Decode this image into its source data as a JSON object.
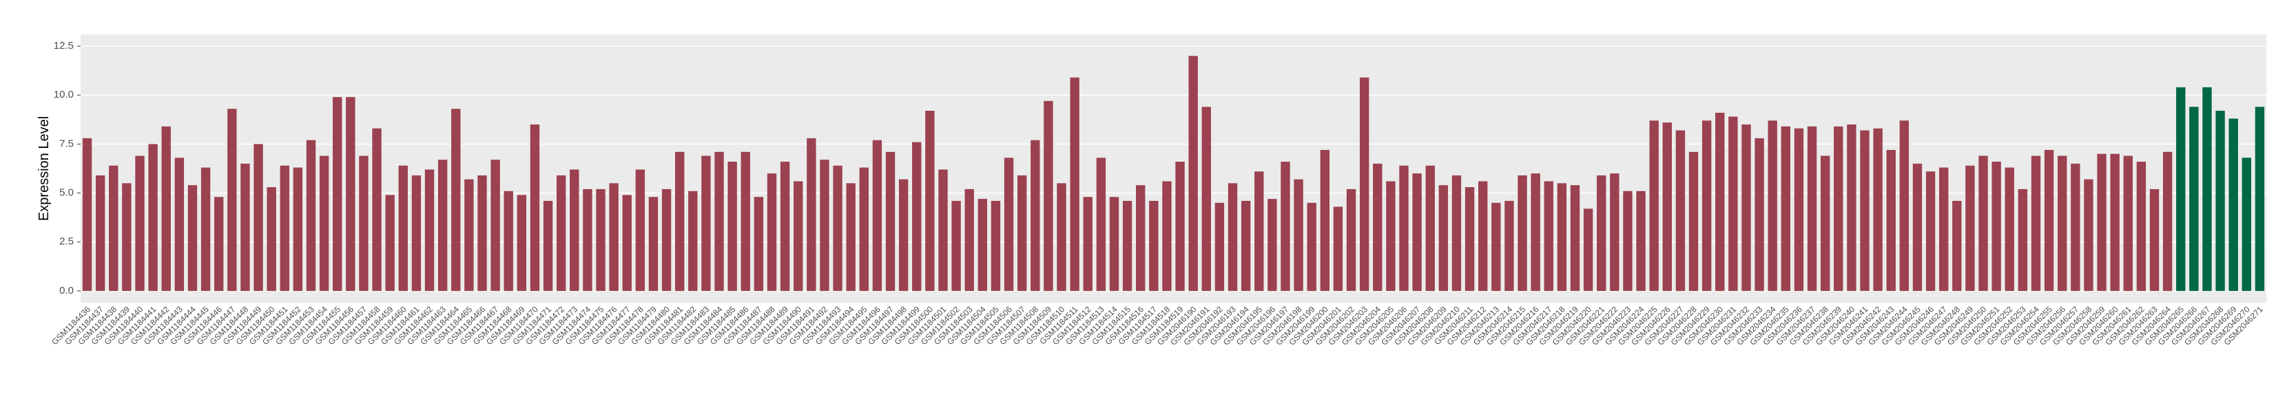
{
  "chart_data": {
    "type": "bar",
    "y_label": "Expression Level",
    "ylim": [
      -0.6,
      13.1
    ],
    "yticks": [
      {
        "value": 0,
        "label": "0.0"
      },
      {
        "value": 2.5,
        "label": "2.5"
      },
      {
        "value": 5,
        "label": "5.0"
      },
      {
        "value": 7.5,
        "label": "7.5"
      },
      {
        "value": 10,
        "label": "10.0"
      },
      {
        "value": 12.5,
        "label": "12.5"
      }
    ],
    "grid": true,
    "categories": [
      "GSM1184436",
      "GSM1184437",
      "GSM1184438",
      "GSM1184439",
      "GSM1184440",
      "GSM1184441",
      "GSM1184442",
      "GSM1184443",
      "GSM1184444",
      "GSM1184445",
      "GSM1184446",
      "GSM1184447",
      "GSM1184448",
      "GSM1184449",
      "GSM1184450",
      "GSM1184451",
      "GSM1184452",
      "GSM1184453",
      "GSM1184454",
      "GSM1184455",
      "GSM1184456",
      "GSM1184457",
      "GSM1184458",
      "GSM1184459",
      "GSM1184460",
      "GSM1184461",
      "GSM1184462",
      "GSM1184463",
      "GSM1184464",
      "GSM1184465",
      "GSM1184466",
      "GSM1184467",
      "GSM1184468",
      "GSM1184469",
      "GSM1184470",
      "GSM1184471",
      "GSM1184472",
      "GSM1184473",
      "GSM1184474",
      "GSM1184475",
      "GSM1184476",
      "GSM1184477",
      "GSM1184478",
      "GSM1184479",
      "GSM1184480",
      "GSM1184481",
      "GSM1184482",
      "GSM1184483",
      "GSM1184484",
      "GSM1184485",
      "GSM1184486",
      "GSM1184487",
      "GSM1184488",
      "GSM1184489",
      "GSM1184490",
      "GSM1184491",
      "GSM1184492",
      "GSM1184493",
      "GSM1184494",
      "GSM1184495",
      "GSM1184496",
      "GSM1184497",
      "GSM1184498",
      "GSM1184499",
      "GSM1184500",
      "GSM1184501",
      "GSM1184502",
      "GSM1184503",
      "GSM1184504",
      "GSM1184505",
      "GSM1184506",
      "GSM1184507",
      "GSM1184508",
      "GSM1184509",
      "GSM1184510",
      "GSM1184511",
      "GSM1184512",
      "GSM1184513",
      "GSM1184514",
      "GSM1184515",
      "GSM1184516",
      "GSM1184517",
      "GSM1184518",
      "GSM1184519",
      "GSM2046190",
      "GSM2046191",
      "GSM2046192",
      "GSM2046193",
      "GSM2046194",
      "GSM2046195",
      "GSM2046196",
      "GSM2046197",
      "GSM2046198",
      "GSM2046199",
      "GSM2046200",
      "GSM2046201",
      "GSM2046202",
      "GSM2046203",
      "GSM2046204",
      "GSM2046205",
      "GSM2046206",
      "GSM2046207",
      "GSM2046208",
      "GSM2046209",
      "GSM2046210",
      "GSM2046211",
      "GSM2046212",
      "GSM2046213",
      "GSM2046214",
      "GSM2046215",
      "GSM2046216",
      "GSM2046217",
      "GSM2046218",
      "GSM2046219",
      "GSM2046220",
      "GSM2046221",
      "GSM2046222",
      "GSM2046223",
      "GSM2046224",
      "GSM2046225",
      "GSM2046226",
      "GSM2046227",
      "GSM2046228",
      "GSM2046229",
      "GSM2046230",
      "GSM2046231",
      "GSM2046232",
      "GSM2046233",
      "GSM2046234",
      "GSM2046235",
      "GSM2046236",
      "GSM2046237",
      "GSM2046238",
      "GSM2046239",
      "GSM2046240",
      "GSM2046241",
      "GSM2046242",
      "GSM2046243",
      "GSM2046244",
      "GSM2046245",
      "GSM2046246",
      "GSM2046247",
      "GSM2046248",
      "GSM2046249",
      "GSM2046250",
      "GSM2046251",
      "GSM2046252",
      "GSM2046253",
      "GSM2046254",
      "GSM2046255",
      "GSM2046256",
      "GSM2046257",
      "GSM2046258",
      "GSM2046259",
      "GSM2046260",
      "GSM2046261",
      "GSM2046262",
      "GSM2046263",
      "GSM2046264",
      "GSM2046265",
      "GSM2046266",
      "GSM2046267",
      "GSM2046268",
      "GSM2046269",
      "GSM2046270",
      "GSM2046271"
    ],
    "values": [
      7.8,
      5.9,
      6.4,
      5.5,
      6.9,
      7.5,
      8.4,
      6.8,
      5.4,
      6.3,
      4.8,
      9.3,
      6.5,
      7.5,
      5.3,
      6.4,
      6.3,
      7.7,
      6.9,
      9.9,
      9.9,
      6.9,
      8.3,
      4.9,
      6.4,
      5.9,
      6.2,
      6.7,
      9.3,
      5.7,
      5.9,
      6.7,
      5.1,
      4.9,
      8.5,
      4.6,
      5.9,
      6.2,
      5.2,
      5.2,
      5.5,
      4.9,
      6.2,
      4.8,
      5.2,
      7.1,
      5.1,
      6.9,
      7.1,
      6.6,
      7.1,
      4.8,
      6.0,
      6.6,
      5.6,
      7.8,
      6.7,
      6.4,
      5.5,
      6.3,
      7.7,
      7.1,
      5.7,
      7.6,
      9.2,
      6.2,
      4.6,
      5.2,
      4.7,
      4.6,
      6.8,
      5.9,
      7.7,
      9.7,
      5.5,
      10.9,
      4.8,
      6.8,
      4.8,
      4.6,
      5.4,
      4.6,
      5.6,
      6.6,
      12.0,
      9.4,
      4.5,
      5.5,
      4.6,
      6.1,
      4.7,
      6.6,
      5.7,
      4.5,
      7.2,
      4.3,
      5.2,
      10.9,
      6.5,
      5.6,
      6.4,
      6.0,
      6.4,
      5.4,
      5.9,
      5.3,
      5.6,
      4.5,
      4.6,
      5.9,
      6.0,
      5.6,
      5.5,
      5.4,
      4.2,
      5.9,
      6.0,
      5.1,
      5.1,
      8.7,
      8.6,
      8.2,
      7.1,
      8.7,
      9.1,
      8.9,
      8.5,
      7.8,
      8.7,
      8.4,
      8.3,
      8.4,
      6.9,
      8.4,
      8.5,
      8.2,
      8.3,
      7.2,
      8.7,
      6.5,
      6.1,
      6.3,
      4.6,
      6.4,
      6.9,
      6.6,
      6.3,
      5.2,
      6.9,
      7.2,
      6.9,
      6.5,
      5.7,
      7.0,
      7.0,
      6.9,
      6.6,
      5.2,
      7.1,
      10.4,
      9.4,
      10.4,
      9.2,
      8.8,
      6.8,
      9.4
    ],
    "colors": [
      "#9b4150",
      "#9b4150",
      "#9b4150",
      "#9b4150",
      "#9b4150",
      "#9b4150",
      "#9b4150",
      "#9b4150",
      "#9b4150",
      "#9b4150",
      "#9b4150",
      "#9b4150",
      "#9b4150",
      "#9b4150",
      "#9b4150",
      "#9b4150",
      "#9b4150",
      "#9b4150",
      "#9b4150",
      "#9b4150",
      "#9b4150",
      "#9b4150",
      "#9b4150",
      "#9b4150",
      "#9b4150",
      "#9b4150",
      "#9b4150",
      "#9b4150",
      "#9b4150",
      "#9b4150",
      "#9b4150",
      "#9b4150",
      "#9b4150",
      "#9b4150",
      "#9b4150",
      "#9b4150",
      "#9b4150",
      "#9b4150",
      "#9b4150",
      "#9b4150",
      "#9b4150",
      "#9b4150",
      "#9b4150",
      "#9b4150",
      "#9b4150",
      "#9b4150",
      "#9b4150",
      "#9b4150",
      "#9b4150",
      "#9b4150",
      "#9b4150",
      "#9b4150",
      "#9b4150",
      "#9b4150",
      "#9b4150",
      "#9b4150",
      "#9b4150",
      "#9b4150",
      "#9b4150",
      "#9b4150",
      "#9b4150",
      "#9b4150",
      "#9b4150",
      "#9b4150",
      "#9b4150",
      "#9b4150",
      "#9b4150",
      "#9b4150",
      "#9b4150",
      "#9b4150",
      "#9b4150",
      "#9b4150",
      "#9b4150",
      "#9b4150",
      "#9b4150",
      "#9b4150",
      "#9b4150",
      "#9b4150",
      "#9b4150",
      "#9b4150",
      "#9b4150",
      "#9b4150",
      "#9b4150",
      "#9b4150",
      "#9b4150",
      "#9b4150",
      "#9b4150",
      "#9b4150",
      "#9b4150",
      "#9b4150",
      "#9b4150",
      "#9b4150",
      "#9b4150",
      "#9b4150",
      "#9b4150",
      "#9b4150",
      "#9b4150",
      "#9b4150",
      "#9b4150",
      "#9b4150",
      "#9b4150",
      "#9b4150",
      "#9b4150",
      "#9b4150",
      "#9b4150",
      "#9b4150",
      "#9b4150",
      "#9b4150",
      "#9b4150",
      "#9b4150",
      "#9b4150",
      "#9b4150",
      "#9b4150",
      "#9b4150",
      "#9b4150",
      "#9b4150",
      "#9b4150",
      "#9b4150",
      "#9b4150",
      "#9b4150",
      "#9b4150",
      "#9b4150",
      "#9b4150",
      "#9b4150",
      "#9b4150",
      "#9b4150",
      "#9b4150",
      "#9b4150",
      "#9b4150",
      "#9b4150",
      "#9b4150",
      "#9b4150",
      "#9b4150",
      "#9b4150",
      "#9b4150",
      "#9b4150",
      "#9b4150",
      "#9b4150",
      "#9b4150",
      "#9b4150",
      "#9b4150",
      "#9b4150",
      "#9b4150",
      "#9b4150",
      "#9b4150",
      "#9b4150",
      "#9b4150",
      "#9b4150",
      "#9b4150",
      "#9b4150",
      "#9b4150",
      "#9b4150",
      "#9b4150",
      "#9b4150",
      "#9b4150",
      "#9b4150",
      "#9b4150",
      "#9b4150",
      "#9b4150",
      "#006747",
      "#006747",
      "#006747",
      "#006747",
      "#006747",
      "#006747",
      "#006747"
    ]
  }
}
